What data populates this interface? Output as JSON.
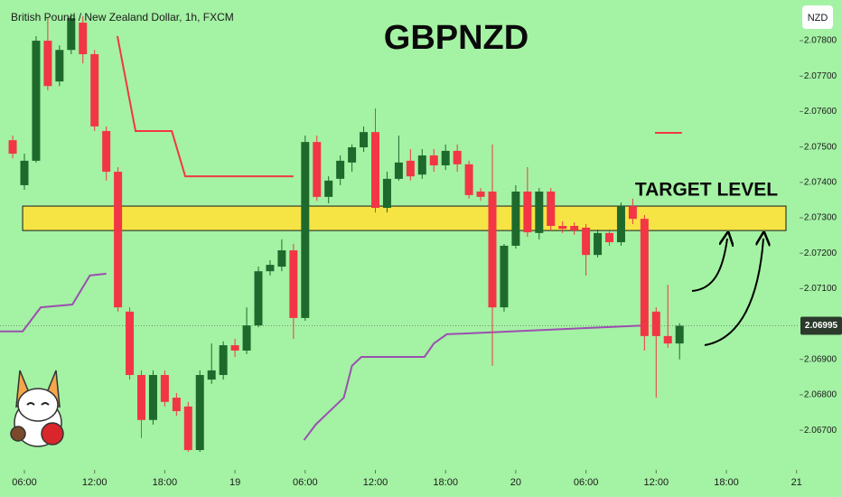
{
  "chart_data": {
    "type": "candlestick",
    "header": "British Pound / New Zealand Dollar, 1h, FXCM",
    "title": "GBPNZD",
    "currency": "NZD",
    "target_zone": {
      "label": "TARGET LEVEL",
      "low": 2.07264,
      "high": 2.07333,
      "color": "#ffe23b"
    },
    "last_price": 2.06995,
    "up_color": "#1e6a2c",
    "down_color": "#f23645",
    "x": [
      -1,
      0,
      1,
      2,
      3,
      4,
      5,
      6,
      7,
      8,
      9,
      10,
      11,
      12,
      13,
      14,
      15,
      16,
      17,
      18,
      19,
      20,
      21,
      22,
      23,
      24,
      25,
      26,
      27,
      28,
      29,
      30,
      31,
      32,
      33,
      34,
      35,
      36,
      37,
      38,
      39,
      40,
      41,
      42,
      43,
      44,
      45,
      46,
      47,
      48,
      49,
      50,
      51,
      52,
      53,
      54,
      55,
      56
    ],
    "open": [
      2.07519,
      2.07392,
      2.07461,
      2.078,
      2.07685,
      2.07774,
      2.07851,
      2.07762,
      2.07545,
      2.0743,
      2.07035,
      2.06856,
      2.06729,
      2.06856,
      2.06792,
      2.06767,
      2.06644,
      2.06843,
      2.06856,
      2.0694,
      2.06925,
      2.06996,
      2.07149,
      2.07162,
      2.07208,
      2.07017,
      2.07514,
      2.07359,
      2.0741,
      2.07456,
      2.07499,
      2.07542,
      2.07328,
      2.0741,
      2.07461,
      2.07422,
      2.07476,
      2.07448,
      2.07489,
      2.07451,
      2.07374,
      2.07374,
      2.07047,
      2.07221,
      2.07374,
      2.07257,
      2.07374,
      2.07277,
      2.07277,
      2.07272,
      2.07195,
      2.07257,
      2.07231,
      2.07333,
      2.07297,
      2.07035,
      2.06966,
      2.06945
    ],
    "high": [
      2.07532,
      2.07481,
      2.07813,
      2.07864,
      2.07787,
      2.07877,
      2.07869,
      2.07774,
      2.07558,
      2.07443,
      2.07047,
      2.06869,
      2.06869,
      2.06869,
      2.06805,
      2.0678,
      2.06869,
      2.06945,
      2.06951,
      2.06958,
      2.07047,
      2.07162,
      2.0718,
      2.07239,
      2.07226,
      2.07532,
      2.07532,
      2.07417,
      2.07476,
      2.07507,
      2.07558,
      2.07609,
      2.0743,
      2.07532,
      2.07494,
      2.07494,
      2.07494,
      2.07507,
      2.07507,
      2.07461,
      2.07384,
      2.07507,
      2.07226,
      2.07392,
      2.07443,
      2.07384,
      2.07384,
      2.0729,
      2.07287,
      2.07282,
      2.07267,
      2.07267,
      2.07343,
      2.07354,
      2.07308,
      2.07047,
      2.07111,
      2.07002
    ],
    "low": [
      2.07468,
      2.07379,
      2.07456,
      2.0766,
      2.07672,
      2.07762,
      2.07736,
      2.07545,
      2.07405,
      2.07035,
      2.06843,
      2.06678,
      2.06716,
      2.06767,
      2.06741,
      2.06639,
      2.06639,
      2.06831,
      2.06843,
      2.06907,
      2.06915,
      2.06991,
      2.07137,
      2.07149,
      2.06958,
      2.07009,
      2.07348,
      2.07341,
      2.07392,
      2.0743,
      2.07486,
      2.07315,
      2.07315,
      2.07405,
      2.07405,
      2.0741,
      2.0743,
      2.07435,
      2.0743,
      2.07354,
      2.07348,
      2.06882,
      2.07035,
      2.07213,
      2.07246,
      2.07239,
      2.07264,
      2.07257,
      2.07252,
      2.07137,
      2.07188,
      2.07221,
      2.07221,
      2.07282,
      2.06925,
      2.06792,
      2.06933,
      2.069
    ],
    "close": [
      2.07481,
      2.07461,
      2.078,
      2.07672,
      2.07774,
      2.07864,
      2.07762,
      2.07558,
      2.0743,
      2.07047,
      2.06856,
      2.06729,
      2.06856,
      2.0678,
      2.06754,
      2.06644,
      2.06856,
      2.06869,
      2.0694,
      2.06925,
      2.06996,
      2.07149,
      2.07167,
      2.07208,
      2.07017,
      2.07514,
      2.07359,
      2.07405,
      2.07461,
      2.07499,
      2.07542,
      2.07328,
      2.0741,
      2.07456,
      2.07417,
      2.07476,
      2.07448,
      2.07489,
      2.07451,
      2.07364,
      2.07359,
      2.07047,
      2.07221,
      2.07374,
      2.07259,
      2.07374,
      2.07277,
      2.07269,
      2.07264,
      2.07195,
      2.07257,
      2.07231,
      2.07333,
      2.07297,
      2.06966,
      2.06966,
      2.06945,
      2.06995
    ],
    "lines": [
      {
        "color": "#f23645",
        "x": [
          7.95,
          9.5,
          12.6,
          13.75,
          23.0
        ],
        "values": [
          2.07813,
          2.07545,
          2.07545,
          2.07417,
          2.07417
        ]
      },
      {
        "color": "#f23645",
        "x": [
          53.9,
          56.2
        ],
        "values": [
          2.0754,
          2.0754
        ]
      },
      {
        "color": "#9c4fb0",
        "x": [
          -2.1,
          -0.15,
          1.4,
          4.1,
          5.6,
          7.0
        ],
        "values": [
          2.06979,
          2.06979,
          2.07047,
          2.07055,
          2.07137,
          2.07142
        ]
      },
      {
        "color": "#9c4fb0",
        "x": [
          23.9,
          24.9,
          26.1,
          27.3,
          28.0,
          28.8,
          34.2,
          35.0,
          36.1,
          53.1
        ],
        "values": [
          2.06672,
          2.06716,
          2.06754,
          2.06792,
          2.06882,
          2.06907,
          2.06907,
          2.06945,
          2.06971,
          2.06996
        ]
      }
    ],
    "xlim": [
      -2.085,
      66.255
    ],
    "ylim": [
      2.06588,
      2.07915
    ],
    "xticks": [
      {
        "value": 0,
        "label": "06:00"
      },
      {
        "value": 6,
        "label": "12:00"
      },
      {
        "value": 12,
        "label": "18:00"
      },
      {
        "value": 18,
        "label": "19"
      },
      {
        "value": 24,
        "label": "06:00"
      },
      {
        "value": 30,
        "label": "12:00"
      },
      {
        "value": 36,
        "label": "18:00"
      },
      {
        "value": 42,
        "label": "20"
      },
      {
        "value": 48,
        "label": "06:00"
      },
      {
        "value": 54,
        "label": "12:00"
      },
      {
        "value": 60,
        "label": "18:00"
      },
      {
        "value": 66,
        "label": "21"
      }
    ],
    "yticks": [
      {
        "value": 2.067,
        "label": "2.06700"
      },
      {
        "value": 2.068,
        "label": "2.06800"
      },
      {
        "value": 2.069,
        "label": "2.06900"
      },
      {
        "value": 2.071,
        "label": "2.07100"
      },
      {
        "value": 2.072,
        "label": "2.07200"
      },
      {
        "value": 2.073,
        "label": "2.07300"
      },
      {
        "value": 2.074,
        "label": "2.07400"
      },
      {
        "value": 2.075,
        "label": "2.07500"
      },
      {
        "value": 2.076,
        "label": "2.07600"
      },
      {
        "value": 2.077,
        "label": "2.07700"
      },
      {
        "value": 2.078,
        "label": "2.07800"
      }
    ],
    "grid": false
  }
}
